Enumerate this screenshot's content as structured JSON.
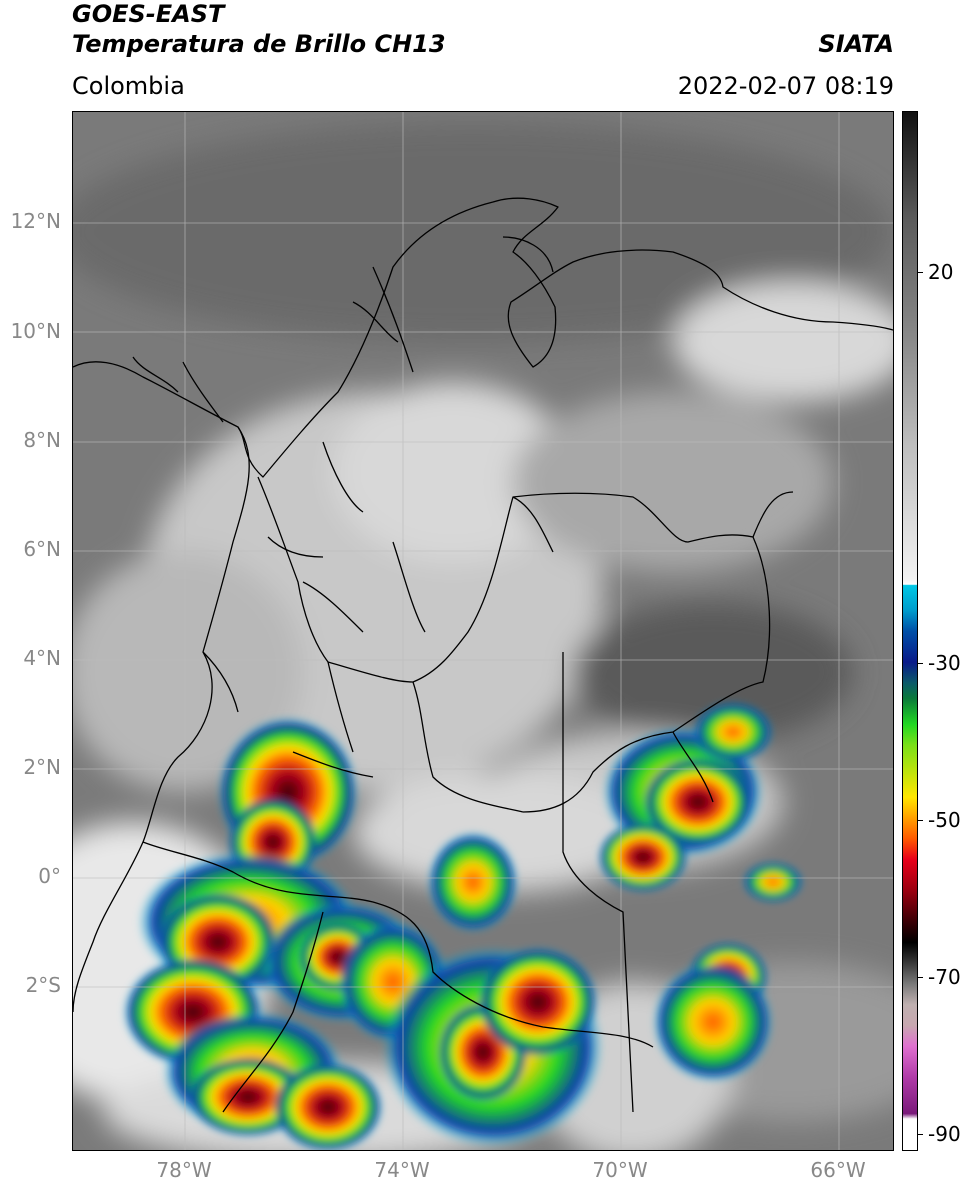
{
  "header": {
    "satellite": "GOES-EAST",
    "product": "Temperatura de Brillo CH13",
    "brand": "SIATA",
    "region": "Colombia",
    "timestamp": "2022-02-07 08:19"
  },
  "map": {
    "latitude_labels": [
      "12°N",
      "10°N",
      "8°N",
      "6°N",
      "4°N",
      "2°N",
      "0°",
      "2°S"
    ],
    "longitude_labels": [
      "78°W",
      "74°W",
      "70°W",
      "66°W"
    ],
    "extent": {
      "lon_min": -80.0,
      "lon_max": -65.0,
      "lat_min": -5.0,
      "lat_max": 14.0
    },
    "gridlines": true
  },
  "colorbar": {
    "labels": [
      "20",
      "-30",
      "-50",
      "-70",
      "-90"
    ],
    "colors": {
      "warm_dark": "#3a3a3a",
      "warm_light": "#f2f2f2",
      "cyan": "#00c8e6",
      "blue": "#0a2a9a",
      "green": "#22d822",
      "yellow": "#ffe600",
      "orange": "#ff7a00",
      "red": "#d8001a",
      "dark_red": "#4a0008",
      "black": "#000000",
      "pink": "#e070d0",
      "purple": "#8a1a8a"
    }
  }
}
